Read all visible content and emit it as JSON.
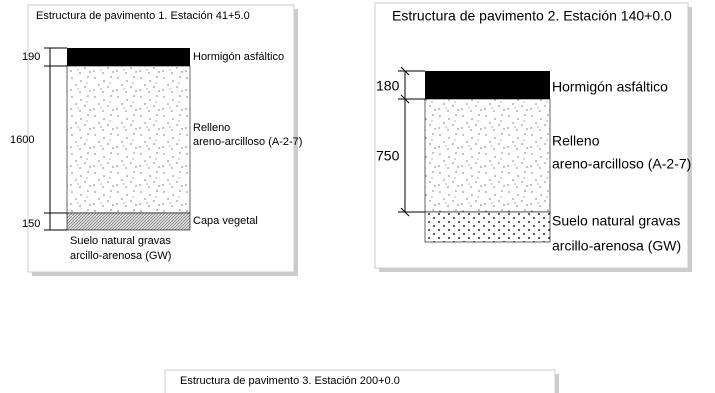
{
  "panels": [
    {
      "title": "Estructura de pavimento 1. Estación 41+5.0",
      "dimensions": [
        190,
        1600,
        150
      ],
      "layers": [
        {
          "label": [
            "Hormigón asfáltico"
          ]
        },
        {
          "label": [
            "Relleno",
            "areno-arcilloso (A-2-7)"
          ]
        },
        {
          "label": [
            "Capa vegetal"
          ]
        },
        {
          "label": [
            "Suelo natural gravas",
            "arcillo-arenosa (GW)"
          ]
        }
      ]
    },
    {
      "title": "Estructura de pavimento 2. Estación 140+0.0",
      "dimensions": [
        180,
        750
      ],
      "layers": [
        {
          "label": [
            "Hormigón asfáltico"
          ]
        },
        {
          "label": [
            "Relleno",
            "areno-arcilloso (A-2-7)"
          ]
        },
        {
          "label": [
            "Suelo natural gravas",
            "arcillo-arenosa (GW)"
          ]
        }
      ]
    },
    {
      "title": "Estructura de pavimento 3. Estación 200+0.0"
    }
  ]
}
